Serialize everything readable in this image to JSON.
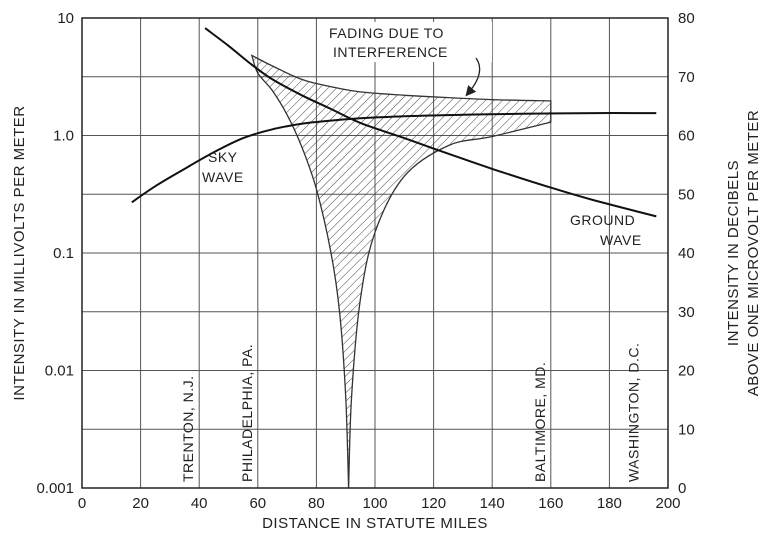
{
  "chart_data": {
    "type": "line",
    "xlabel": "DISTANCE IN STATUTE MILES",
    "ylabel_left": "INTENSITY IN MILLIVOLTS PER METER",
    "ylabel_right_line1": "INTENSITY IN DECIBELS",
    "ylabel_right_line2": "ABOVE ONE MICROVOLT PER METER",
    "xlim": [
      0,
      200
    ],
    "ylim_left_log10": [
      -3,
      1
    ],
    "ylim_right_db": [
      0,
      80
    ],
    "y_scale_left": "log",
    "grid": true,
    "x_ticks": [
      "0",
      "20",
      "40",
      "60",
      "80",
      "100",
      "120",
      "140",
      "160",
      "180",
      "200"
    ],
    "y_ticks_left": [
      "0.001",
      "0.01",
      "0.1",
      "1.0",
      "10"
    ],
    "y_ticks_right": [
      "0",
      "10",
      "20",
      "30",
      "40",
      "50",
      "60",
      "70",
      "80"
    ],
    "series": [
      {
        "name": "SKY WAVE",
        "label_lines": [
          "SKY",
          "WAVE"
        ],
        "x": [
          17,
          25,
          35,
          45,
          55,
          65,
          75,
          85,
          95,
          110,
          130,
          150,
          175,
          196
        ],
        "y": [
          0.27,
          0.37,
          0.52,
          0.72,
          0.95,
          1.13,
          1.26,
          1.34,
          1.4,
          1.46,
          1.5,
          1.53,
          1.55,
          1.55
        ]
      },
      {
        "name": "GROUND WAVE",
        "label_lines": [
          "GROUND",
          "WAVE"
        ],
        "x": [
          42,
          50,
          58,
          65,
          75,
          85,
          95,
          110,
          125,
          140,
          160,
          175,
          196
        ],
        "y": [
          8.2,
          5.8,
          4.0,
          3.0,
          2.2,
          1.68,
          1.28,
          0.95,
          0.7,
          0.52,
          0.36,
          0.28,
          0.205
        ]
      }
    ],
    "fading_region": {
      "upper_x": [
        58,
        65,
        75,
        85,
        95,
        110,
        125,
        140,
        160
      ],
      "upper_y": [
        4.8,
        3.9,
        3.0,
        2.6,
        2.35,
        2.2,
        2.1,
        2.02,
        1.97
      ],
      "right_x": [
        160,
        160
      ],
      "right_y": [
        1.97,
        1.3
      ],
      "lower_x": [
        160,
        140,
        125,
        110,
        100,
        95,
        92,
        91
      ],
      "lower_y": [
        1.3,
        0.98,
        0.82,
        0.45,
        0.15,
        0.04,
        0.006,
        0.001
      ],
      "left_lower_x": [
        91,
        90,
        88,
        85,
        80,
        75,
        70,
        65,
        60,
        58
      ],
      "left_lower_y": [
        0.001,
        0.006,
        0.03,
        0.1,
        0.35,
        0.8,
        1.5,
        2.4,
        3.4,
        4.8
      ]
    },
    "annotations": {
      "fading_line1": "FADING DUE TO",
      "fading_line2": "INTERFERENCE",
      "arrow_target_x": 132,
      "arrow_target_y": 2.15
    },
    "cities": [
      {
        "name": "TRENTON, N.J.",
        "x": 40
      },
      {
        "name": "PHILADELPHIA, PA.",
        "x": 60
      },
      {
        "name": "BALTIMORE, MD.",
        "x": 160
      },
      {
        "name": "WASHINGTON, D.C.",
        "x": 192
      }
    ]
  }
}
